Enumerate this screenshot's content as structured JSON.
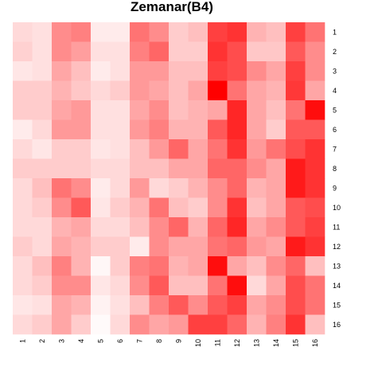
{
  "chart_data": {
    "type": "heatmap",
    "title": "Zemanar(B4)",
    "xlabel": "",
    "ylabel": "",
    "x_categories": [
      "1",
      "2",
      "3",
      "4",
      "5",
      "6",
      "7",
      "8",
      "9",
      "10",
      "11",
      "12",
      "13",
      "14",
      "15",
      "16"
    ],
    "y_categories": [
      "1",
      "2",
      "3",
      "4",
      "5",
      "6",
      "7",
      "8",
      "9",
      "10",
      "11",
      "12",
      "13",
      "14",
      "15",
      "16"
    ],
    "value_range": [
      0,
      1
    ],
    "colors": {
      "low": "#ffffff",
      "high": "#ff0000"
    },
    "grid": false,
    "legend": "none",
    "values": [
      [
        0.15,
        0.12,
        0.45,
        0.5,
        0.08,
        0.08,
        0.55,
        0.45,
        0.2,
        0.25,
        0.75,
        0.8,
        0.3,
        0.25,
        0.75,
        0.55
      ],
      [
        0.18,
        0.12,
        0.45,
        0.38,
        0.12,
        0.12,
        0.5,
        0.6,
        0.2,
        0.2,
        0.8,
        0.7,
        0.22,
        0.22,
        0.65,
        0.45
      ],
      [
        0.1,
        0.12,
        0.35,
        0.25,
        0.08,
        0.12,
        0.4,
        0.4,
        0.25,
        0.25,
        0.75,
        0.7,
        0.45,
        0.35,
        0.75,
        0.45
      ],
      [
        0.2,
        0.2,
        0.3,
        0.22,
        0.15,
        0.2,
        0.4,
        0.35,
        0.25,
        0.35,
        1.0,
        0.55,
        0.35,
        0.3,
        0.78,
        0.35
      ],
      [
        0.2,
        0.2,
        0.35,
        0.4,
        0.12,
        0.12,
        0.35,
        0.45,
        0.25,
        0.3,
        0.35,
        0.85,
        0.35,
        0.25,
        0.55,
        0.95
      ],
      [
        0.08,
        0.15,
        0.4,
        0.4,
        0.12,
        0.12,
        0.4,
        0.5,
        0.3,
        0.3,
        0.65,
        0.85,
        0.35,
        0.2,
        0.65,
        0.65
      ],
      [
        0.15,
        0.1,
        0.2,
        0.2,
        0.1,
        0.12,
        0.25,
        0.4,
        0.6,
        0.35,
        0.55,
        0.8,
        0.4,
        0.55,
        0.7,
        0.8
      ],
      [
        0.2,
        0.2,
        0.2,
        0.2,
        0.15,
        0.15,
        0.25,
        0.25,
        0.35,
        0.35,
        0.6,
        0.6,
        0.45,
        0.35,
        0.9,
        0.8
      ],
      [
        0.15,
        0.25,
        0.55,
        0.45,
        0.08,
        0.15,
        0.4,
        0.15,
        0.2,
        0.3,
        0.45,
        0.6,
        0.3,
        0.35,
        0.9,
        0.8
      ],
      [
        0.15,
        0.2,
        0.45,
        0.65,
        0.1,
        0.2,
        0.3,
        0.55,
        0.25,
        0.2,
        0.45,
        0.8,
        0.25,
        0.35,
        0.65,
        0.7
      ],
      [
        0.15,
        0.15,
        0.3,
        0.35,
        0.15,
        0.15,
        0.25,
        0.45,
        0.6,
        0.3,
        0.6,
        0.85,
        0.35,
        0.45,
        0.65,
        0.75
      ],
      [
        0.2,
        0.15,
        0.35,
        0.3,
        0.2,
        0.2,
        0.08,
        0.45,
        0.35,
        0.35,
        0.55,
        0.6,
        0.4,
        0.35,
        0.9,
        0.8
      ],
      [
        0.15,
        0.25,
        0.5,
        0.3,
        0.03,
        0.2,
        0.5,
        0.55,
        0.3,
        0.35,
        0.95,
        0.35,
        0.25,
        0.45,
        0.6,
        0.25
      ],
      [
        0.15,
        0.2,
        0.45,
        0.45,
        0.1,
        0.15,
        0.45,
        0.65,
        0.25,
        0.25,
        0.55,
        0.95,
        0.15,
        0.35,
        0.7,
        0.55
      ],
      [
        0.1,
        0.12,
        0.35,
        0.3,
        0.05,
        0.12,
        0.25,
        0.5,
        0.65,
        0.45,
        0.65,
        0.75,
        0.35,
        0.45,
        0.7,
        0.55
      ],
      [
        0.15,
        0.2,
        0.35,
        0.2,
        0.02,
        0.15,
        0.45,
        0.35,
        0.4,
        0.75,
        0.75,
        0.6,
        0.3,
        0.5,
        0.8,
        0.25
      ]
    ]
  }
}
